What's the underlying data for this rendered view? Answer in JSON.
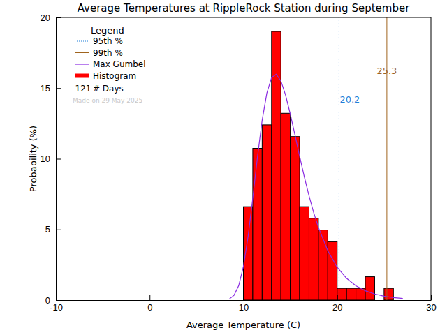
{
  "chart_data": {
    "type": "histogram",
    "title": "Average Temperatures at RippleRock Station during September",
    "xlabel": "Average Temperature (C)",
    "ylabel": "Probability (%)",
    "xlim": [
      -10,
      30
    ],
    "xticks": [
      -10,
      0,
      10,
      20,
      30
    ],
    "ylim": [
      0,
      20
    ],
    "yticks": [
      0,
      5,
      10,
      15,
      20
    ],
    "legend": "upper left",
    "legend_title": "Legend",
    "bins": [
      10,
      11,
      12,
      13,
      14,
      15,
      16,
      17,
      18,
      19,
      20,
      21,
      22,
      23,
      24,
      25,
      26
    ],
    "series": [
      {
        "name": "Histogram",
        "type": "bar",
        "color": "#ff0000",
        "values": [
          6.61,
          10.74,
          12.4,
          19.01,
          13.22,
          11.57,
          6.61,
          5.79,
          4.96,
          4.13,
          0.83,
          0.83,
          0.83,
          1.65,
          0,
          0.83
        ]
      },
      {
        "name": "Max Gumbel",
        "type": "line",
        "color": "#8a2be2",
        "x": [
          8.5,
          9,
          9.5,
          10,
          10.5,
          11,
          11.5,
          12,
          12.5,
          13,
          13.5,
          14,
          14.5,
          15,
          15.5,
          16,
          16.5,
          17,
          17.5,
          18,
          19,
          20,
          21,
          22,
          23,
          24,
          25,
          26,
          27
        ],
        "values": [
          0.08,
          0.34,
          1.02,
          2.38,
          4.5,
          7.21,
          10.12,
          12.72,
          14.65,
          15.74,
          15.98,
          15.51,
          14.5,
          13.16,
          11.68,
          10.17,
          8.71,
          7.38,
          6.18,
          5.14,
          3.49,
          2.33,
          1.54,
          1.01,
          0.66,
          0.43,
          0.28,
          0.18,
          0.12
        ]
      }
    ],
    "annotations": [
      {
        "name": "95th %",
        "x": 20.2,
        "color": "#1e7fd8",
        "line_style": "dotted"
      },
      {
        "name": "99th %",
        "x": 25.3,
        "color": "#a0641e",
        "line_style": "solid"
      }
    ],
    "days": 121,
    "days_label": "# Days",
    "note": "Made on 29 May 2025"
  }
}
